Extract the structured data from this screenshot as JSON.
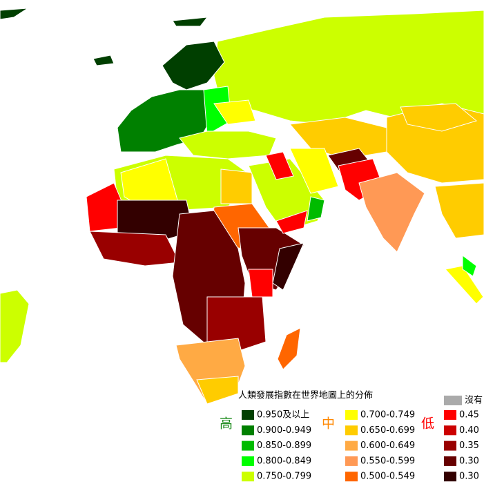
{
  "legend": {
    "title": "人類發展指數在世界地圖上的分佈",
    "groups": [
      {
        "label": "高",
        "color": "#1a8a1a",
        "items": [
          {
            "label": "0.950及以上",
            "color": "#003f00"
          },
          {
            "label": "0.900-0.949",
            "color": "#008000"
          },
          {
            "label": "0.850-0.899",
            "color": "#00bb00"
          },
          {
            "label": "0.800-0.849",
            "color": "#00ff00"
          },
          {
            "label": "0.750-0.799",
            "color": "#ccff00"
          }
        ]
      },
      {
        "label": "中",
        "color": "#ff8800",
        "items": [
          {
            "label": "0.700-0.749",
            "color": "#ffff00"
          },
          {
            "label": "0.650-0.699",
            "color": "#ffcc00"
          },
          {
            "label": "0.600-0.649",
            "color": "#ffaa44"
          },
          {
            "label": "0.550-0.599",
            "color": "#ff9955"
          },
          {
            "label": "0.500-0.549",
            "color": "#ff6600"
          }
        ]
      },
      {
        "label": "低",
        "color": "#ff0000",
        "items": [
          {
            "label": "0.45",
            "color": "#ff0000"
          },
          {
            "label": "0.40",
            "color": "#cc0000"
          },
          {
            "label": "0.35",
            "color": "#990000"
          },
          {
            "label": "0.30",
            "color": "#660000"
          },
          {
            "label": "0.30",
            "color": "#330000"
          }
        ]
      }
    ],
    "no_data": {
      "label": "沒有",
      "color": "#aaaaaa"
    }
  }
}
